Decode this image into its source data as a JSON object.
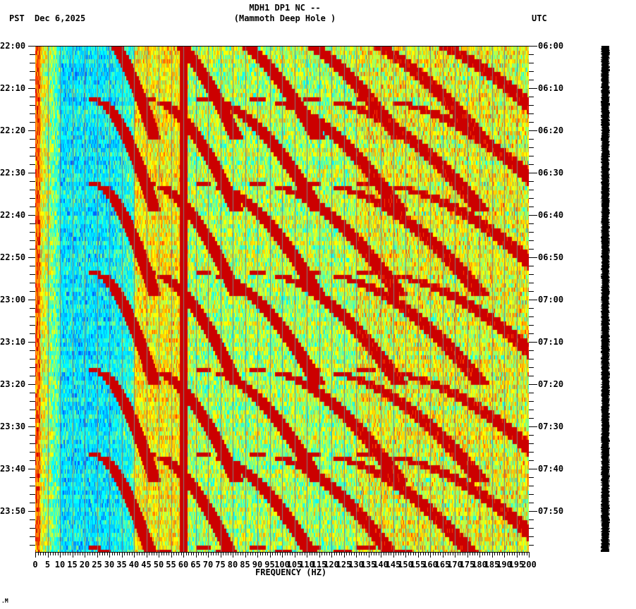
{
  "header": {
    "station_line": "MDH1 DP1 NC --",
    "site_line": "(Mammoth Deep Hole )",
    "left_timezone": "PST",
    "date": "Dec 6,2025",
    "right_timezone": "UTC"
  },
  "footer": {
    "corner_mark": ".M"
  },
  "colors": {
    "background": "#ffffff",
    "axis": "#000000",
    "gridline": "#808080",
    "colormap": [
      "#0066ff",
      "#00ccff",
      "#00ffff",
      "#80ff80",
      "#ffff00",
      "#ffaa00",
      "#ff4000",
      "#cc0000",
      "#800000"
    ],
    "legend_strip": "#000000"
  },
  "chart_data": {
    "type": "heatmap",
    "title": "MDH1 DP1 NC -- (Mammoth Deep Hole )",
    "subtitle": "PST Dec 6,2025 / UTC",
    "xlabel": "FREQUENCY (HZ)",
    "ylabel": "",
    "xlim": [
      0,
      200
    ],
    "x_ticks": [
      0,
      5,
      10,
      15,
      20,
      25,
      30,
      35,
      40,
      45,
      50,
      55,
      60,
      65,
      70,
      75,
      80,
      85,
      90,
      95,
      100,
      105,
      110,
      115,
      120,
      125,
      130,
      135,
      140,
      145,
      150,
      155,
      160,
      165,
      170,
      175,
      180,
      185,
      190,
      195,
      200
    ],
    "x_tick_labels": [
      "0",
      "5",
      "10",
      "15",
      "20",
      "25",
      "30",
      "35",
      "40",
      "45",
      "50",
      "55",
      "60",
      "65",
      "70",
      "75",
      "80",
      "85",
      "90",
      "95",
      "100",
      "105",
      "110",
      "115",
      "120",
      "125",
      "130",
      "135",
      "140",
      "145",
      "150",
      "155",
      "160",
      "165",
      "170",
      "175",
      "180",
      "185",
      "190",
      "195",
      "200"
    ],
    "y_ticks_left": [
      "22:00",
      "22:10",
      "22:20",
      "22:30",
      "22:40",
      "22:50",
      "23:00",
      "23:10",
      "23:20",
      "23:30",
      "23:40",
      "23:50"
    ],
    "y_ticks_right": [
      "06:00",
      "06:10",
      "06:20",
      "06:30",
      "06:40",
      "06:50",
      "07:00",
      "07:10",
      "07:20",
      "07:30",
      "07:40",
      "07:50"
    ],
    "y_range_minutes": [
      0,
      120
    ],
    "minor_tick_interval_minutes": 2,
    "grid": {
      "vertical_every_hz": 5,
      "color": "#808080"
    },
    "features": {
      "persistent_line_hz": 60,
      "low_frequency_band_hz": [
        10,
        40
      ],
      "low_frequency_band_level": "low (blue/cyan)",
      "mid_band_hz": [
        40,
        130
      ],
      "high_band_hz": [
        130,
        200
      ],
      "high_band_level": "moderate (green/yellow)",
      "streak_cycle_start_minutes": [
        -5,
        12,
        32,
        53,
        76,
        96,
        118
      ],
      "streak_base_frequencies_hz": [
        20,
        40,
        60,
        80,
        100,
        120
      ],
      "streak_description": "curved high-amplitude streaks sweeping downward in frequency over ~20 min cycles"
    },
    "legend": {
      "position": "right",
      "type": "amplitude strip"
    }
  }
}
